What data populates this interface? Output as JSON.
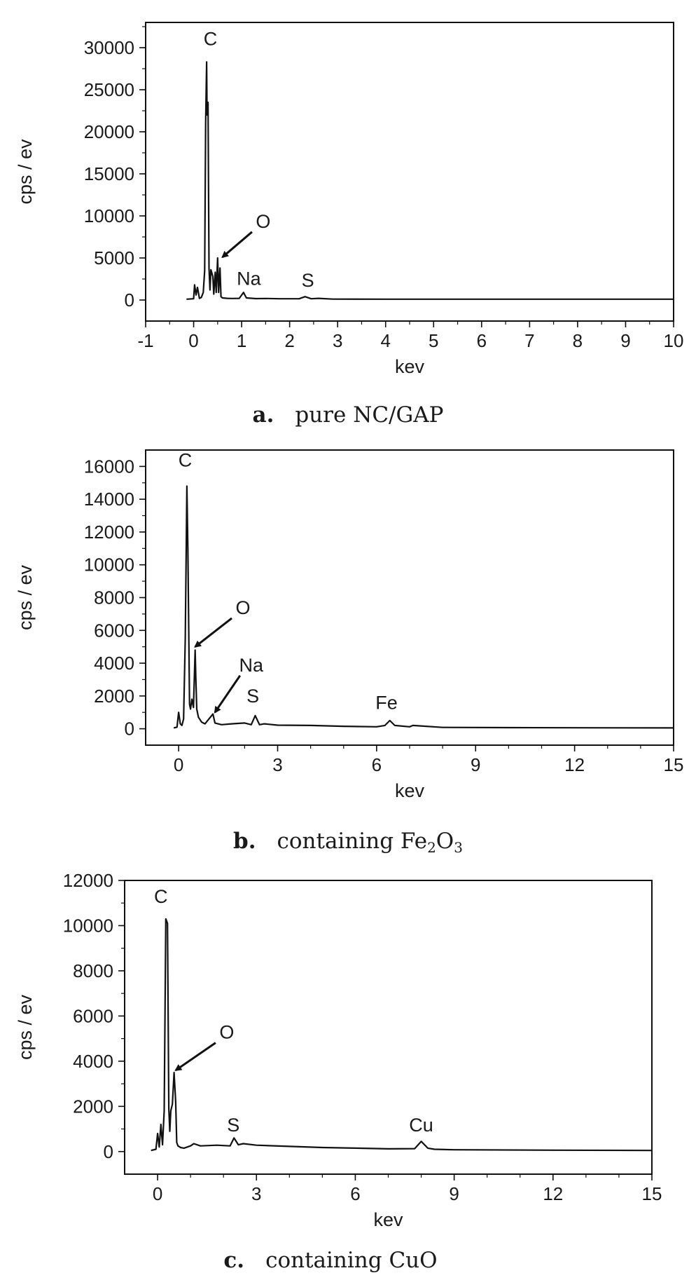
{
  "chart_data": [
    {
      "type": "line",
      "panel_letter": "a.",
      "caption": "pure NC/GAP",
      "xlabel": "kev",
      "ylabel": "cps / ev",
      "xlim": [
        -1,
        10
      ],
      "ylim": [
        -2500,
        33000
      ],
      "xticks": [
        -1,
        0,
        1,
        2,
        3,
        4,
        5,
        6,
        7,
        8,
        9,
        10
      ],
      "yticks": [
        0,
        5000,
        10000,
        15000,
        20000,
        25000,
        30000
      ],
      "series": [
        {
          "x": [
            -0.15,
            0.0,
            0.02,
            0.05,
            0.08,
            0.12,
            0.16,
            0.2,
            0.23,
            0.25,
            0.27,
            0.28,
            0.3,
            0.32,
            0.34,
            0.36,
            0.4,
            0.42,
            0.45,
            0.47,
            0.5,
            0.52,
            0.55,
            0.57,
            0.6,
            0.7,
            0.8,
            0.95,
            1.04,
            1.1,
            1.3,
            1.5,
            1.8,
            2.2,
            2.32,
            2.45,
            2.6,
            2.9,
            4,
            6,
            8,
            10
          ],
          "y": [
            100,
            150,
            1800,
            600,
            1500,
            200,
            300,
            900,
            3500,
            21000,
            28300,
            22000,
            23500,
            3800,
            1200,
            3600,
            2800,
            700,
            3300,
            900,
            5000,
            900,
            3800,
            400,
            250,
            200,
            180,
            200,
            900,
            250,
            170,
            180,
            150,
            150,
            400,
            150,
            200,
            110,
            100,
            100,
            100,
            100
          ]
        }
      ],
      "annotations": [
        {
          "text": "C",
          "x": 0.35,
          "y": 30300
        },
        {
          "text": "O",
          "x": 1.45,
          "y": 8600,
          "arrow_to": [
            0.6,
            5100
          ]
        },
        {
          "text": "Na",
          "x": 1.15,
          "y": 1800
        },
        {
          "text": "S",
          "x": 2.38,
          "y": 1600
        }
      ]
    },
    {
      "type": "line",
      "panel_letter": "b.",
      "caption_pre": "containing Fe",
      "caption_sub1": "2",
      "caption_mid": "O",
      "caption_sub2": "3",
      "xlabel": "kev",
      "ylabel": "cps / ev",
      "xlim": [
        -1,
        15
      ],
      "ylim": [
        -1000,
        17000
      ],
      "xticks": [
        0,
        3,
        6,
        9,
        12,
        15
      ],
      "yticks": [
        0,
        2000,
        4000,
        6000,
        8000,
        10000,
        12000,
        14000,
        16000
      ],
      "series": [
        {
          "x": [
            -0.15,
            -0.05,
            0.0,
            0.05,
            0.1,
            0.15,
            0.2,
            0.25,
            0.28,
            0.3,
            0.33,
            0.36,
            0.4,
            0.45,
            0.5,
            0.52,
            0.55,
            0.6,
            0.7,
            0.8,
            1.04,
            1.1,
            1.3,
            1.6,
            2.0,
            2.2,
            2.32,
            2.45,
            2.6,
            3.0,
            4,
            5,
            6.0,
            6.25,
            6.4,
            6.55,
            7.0,
            7.1,
            8,
            10,
            12,
            15
          ],
          "y": [
            50,
            100,
            1000,
            300,
            200,
            600,
            5500,
            14800,
            11000,
            7000,
            1500,
            1200,
            1800,
            1300,
            4800,
            3200,
            1200,
            700,
            400,
            300,
            900,
            350,
            250,
            300,
            350,
            250,
            800,
            250,
            300,
            220,
            200,
            150,
            120,
            200,
            500,
            200,
            120,
            200,
            80,
            70,
            60,
            50
          ]
        }
      ],
      "annotations": [
        {
          "text": "C",
          "x": 0.2,
          "y": 16000
        },
        {
          "text": "O",
          "x": 1.95,
          "y": 7000,
          "arrow_to": [
            0.5,
            5000
          ]
        },
        {
          "text": "Na",
          "x": 2.2,
          "y": 3500,
          "arrow_to": [
            1.1,
            1000
          ]
        },
        {
          "text": "S",
          "x": 2.25,
          "y": 1600
        },
        {
          "text": "Fe",
          "x": 6.3,
          "y": 1200
        }
      ]
    },
    {
      "type": "line",
      "panel_letter": "c.",
      "caption": "containing CuO",
      "xlabel": "kev",
      "ylabel": "cps / ev",
      "xlim": [
        -1,
        15
      ],
      "ylim": [
        -1000,
        12000
      ],
      "xticks": [
        0,
        3,
        6,
        9,
        12,
        15
      ],
      "yticks": [
        0,
        2000,
        4000,
        6000,
        8000,
        10000,
        12000
      ],
      "series": [
        {
          "x": [
            -0.2,
            -0.05,
            0.0,
            0.05,
            0.1,
            0.15,
            0.2,
            0.25,
            0.3,
            0.34,
            0.37,
            0.4,
            0.45,
            0.5,
            0.55,
            0.58,
            0.62,
            0.7,
            0.8,
            1.0,
            1.1,
            1.3,
            1.8,
            2.2,
            2.32,
            2.45,
            2.6,
            3.0,
            4,
            5,
            6,
            7,
            7.8,
            8.0,
            8.2,
            8.4,
            9,
            12,
            15
          ],
          "y": [
            50,
            100,
            800,
            200,
            1200,
            300,
            1800,
            10300,
            10100,
            1900,
            900,
            1800,
            2100,
            3500,
            2200,
            400,
            250,
            180,
            150,
            250,
            350,
            250,
            280,
            250,
            600,
            300,
            350,
            280,
            230,
            180,
            150,
            120,
            130,
            450,
            150,
            100,
            80,
            60,
            50
          ]
        }
      ],
      "annotations": [
        {
          "text": "C",
          "x": 0.1,
          "y": 11000
        },
        {
          "text": "O",
          "x": 2.1,
          "y": 5000,
          "arrow_to": [
            0.55,
            3600
          ]
        },
        {
          "text": "S",
          "x": 2.3,
          "y": 900
        },
        {
          "text": "Cu",
          "x": 8.0,
          "y": 900
        }
      ]
    }
  ]
}
